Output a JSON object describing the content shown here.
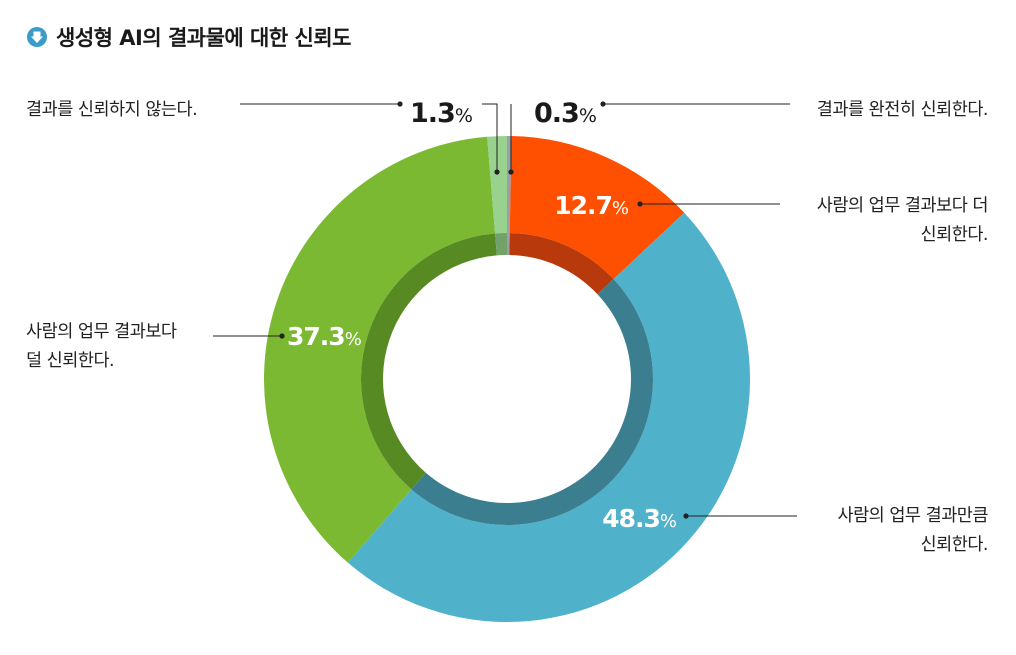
{
  "title": "생성형 AI의 결과물에 대한 신뢰도",
  "colors": {
    "icon": "#3a9cc7",
    "completely": "#9aa0a6",
    "more": "#ff4f00",
    "same": "#50b1cb",
    "less": "#7cb932",
    "not": "#98d28e",
    "inner_more": "#b83a0c",
    "inner_same": "#3a7e8f",
    "inner_less": "#588a23",
    "inner_not": "#72a16a",
    "leader": "#222222"
  },
  "chart_data": {
    "type": "pie",
    "donut": true,
    "title": "생성형 AI의 결과물에 대한 신뢰도",
    "unit": "%",
    "slices": [
      {
        "key": "completely",
        "label": "결과를 완전히 신뢰한다.",
        "value": 0.3
      },
      {
        "key": "more",
        "label": "사람의 업무 결과보다 더 신뢰한다.",
        "value": 12.7
      },
      {
        "key": "same",
        "label": "사람의 업무 결과만큼 신뢰한다.",
        "value": 48.3
      },
      {
        "key": "less",
        "label": "사람의 업무 결과보다 덜 신뢰한다.",
        "value": 37.3
      },
      {
        "key": "not",
        "label": "결과를 신뢰하지 않는다.",
        "value": 1.3
      }
    ]
  },
  "labels": {
    "completely": "결과를 완전히 신뢰한다.",
    "more": [
      "사람의 업무 결과보다 더",
      "신뢰한다."
    ],
    "same": [
      "사람의 업무 결과만큼",
      "신뢰한다."
    ],
    "less": [
      "사람의 업무 결과보다",
      "덜 신뢰한다."
    ],
    "not": "결과를 신뢰하지 않는다."
  }
}
